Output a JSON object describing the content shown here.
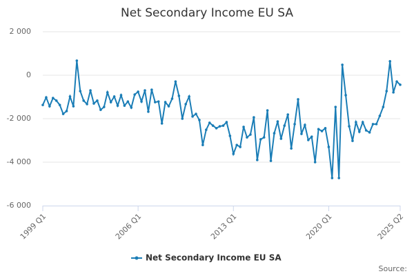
{
  "chart_data": {
    "type": "line",
    "title": "Net Secondary Income EU SA",
    "source": "Source:",
    "categories": [
      "1999 Q1",
      null,
      null,
      null,
      null,
      null,
      null,
      null,
      null,
      null,
      null,
      null,
      null,
      null,
      null,
      null,
      null,
      null,
      null,
      null,
      null,
      null,
      null,
      null,
      null,
      null,
      null,
      null,
      "2006 Q1",
      null,
      null,
      null,
      null,
      null,
      null,
      null,
      null,
      null,
      null,
      null,
      null,
      null,
      null,
      null,
      null,
      null,
      null,
      null,
      null,
      null,
      null,
      null,
      null,
      null,
      null,
      null,
      "2013 Q1",
      null,
      null,
      null,
      null,
      null,
      null,
      null,
      null,
      null,
      null,
      null,
      null,
      null,
      null,
      null,
      null,
      null,
      null,
      null,
      null,
      null,
      null,
      null,
      null,
      null,
      null,
      null,
      "2020 Q1",
      null,
      null,
      null,
      null,
      null,
      null,
      null,
      null,
      null,
      null,
      null,
      null,
      null,
      null,
      null,
      null,
      null,
      null,
      null,
      null,
      "2025 Q2"
    ],
    "series": [
      {
        "name": "Net Secondary Income EU SA",
        "color": "#1a7db6",
        "values": [
          -1370,
          -1020,
          -1430,
          -1050,
          -1170,
          -1370,
          -1780,
          -1650,
          -980,
          -1430,
          670,
          -730,
          -1170,
          -1330,
          -700,
          -1300,
          -1170,
          -1590,
          -1460,
          -790,
          -1240,
          -980,
          -1400,
          -920,
          -1400,
          -1210,
          -1490,
          -890,
          -760,
          -1210,
          -700,
          -1680,
          -670,
          -1240,
          -1210,
          -2220,
          -1240,
          -1430,
          -1080,
          -290,
          -950,
          -2000,
          -1330,
          -980,
          -1900,
          -1780,
          -2060,
          -3210,
          -2510,
          -2190,
          -2320,
          -2440,
          -2350,
          -2320,
          -2160,
          -2790,
          -3620,
          -3210,
          -3300,
          -2380,
          -2860,
          -2730,
          -1940,
          -3900,
          -2950,
          -2860,
          -1620,
          -3940,
          -2670,
          -2130,
          -2920,
          -2320,
          -1810,
          -3370,
          -2250,
          -1110,
          -2700,
          -2290,
          -2980,
          -2830,
          -4000,
          -2480,
          -2570,
          -2440,
          -3300,
          -4730,
          -1460,
          -4730,
          480,
          -920,
          -2350,
          -3020,
          -2160,
          -2600,
          -2160,
          -2540,
          -2630,
          -2250,
          -2250,
          -1870,
          -1460,
          -730,
          640,
          -790,
          -290,
          -440
        ]
      }
    ],
    "ylim": [
      -6000,
      2000
    ],
    "yticks": [
      {
        "value": -6000,
        "label": "-6 000"
      },
      {
        "value": -4000,
        "label": "-4 000"
      },
      {
        "value": -2000,
        "label": "-2 000"
      },
      0,
      {
        "value": 2000,
        "label": "2 000"
      }
    ],
    "grid": true
  }
}
